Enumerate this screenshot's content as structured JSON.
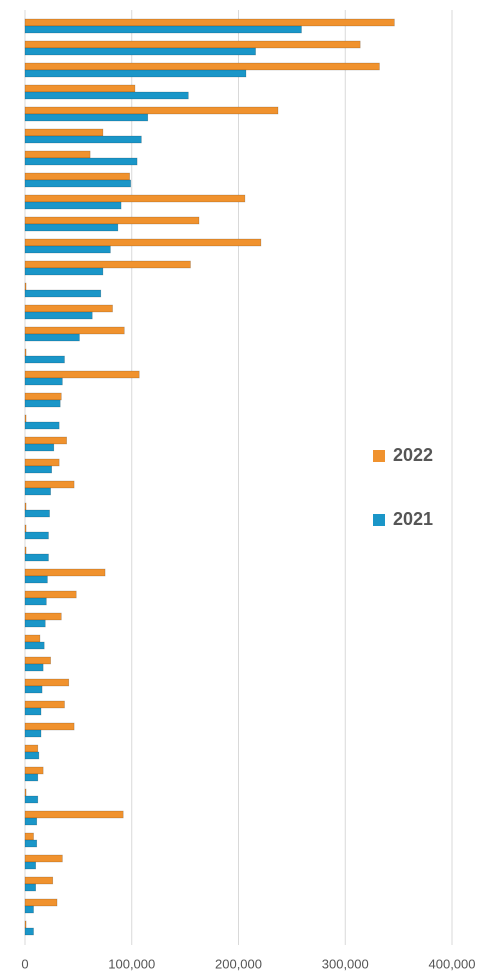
{
  "chart_data": {
    "type": "bar",
    "orientation": "horizontal",
    "categories": [
      null,
      null,
      null,
      null,
      null,
      null,
      null,
      null,
      null,
      null,
      null,
      null,
      null,
      null,
      null,
      null,
      null,
      null,
      null,
      null,
      null,
      null,
      null,
      null,
      null,
      null,
      null,
      null,
      null,
      null,
      null,
      null,
      null,
      null,
      null,
      null,
      null,
      null,
      null,
      null,
      null,
      null
    ],
    "series": [
      {
        "name": "2022",
        "color": "#f0922e",
        "values": [
          346000,
          314000,
          332000,
          103000,
          237000,
          73000,
          61000,
          98000,
          206000,
          163000,
          221000,
          155000,
          1000,
          82000,
          93000,
          1000,
          107000,
          34000,
          1000,
          39000,
          32000,
          46000,
          1000,
          1000,
          1000,
          75000,
          48000,
          34000,
          14000,
          24000,
          41000,
          37000,
          46000,
          12000,
          17000,
          1000,
          92000,
          8000,
          35000,
          26000,
          30000,
          1000
        ]
      },
      {
        "name": "2021",
        "color": "#1a96c8",
        "values": [
          259000,
          216000,
          207000,
          153000,
          115000,
          109000,
          105000,
          99000,
          90000,
          87000,
          80000,
          73000,
          71000,
          63000,
          51000,
          37000,
          35000,
          33000,
          32000,
          27000,
          25000,
          24000,
          23000,
          22000,
          22000,
          21000,
          20000,
          19000,
          18000,
          17000,
          16000,
          15000,
          15000,
          13000,
          12000,
          12000,
          11000,
          11000,
          10000,
          10000,
          8000,
          8000
        ]
      }
    ],
    "xlim": [
      0,
      400000
    ],
    "xticks": [
      0,
      {
        "value": 100000,
        "label": "100,000"
      },
      {
        "value": 200000,
        "label": "200,000"
      },
      {
        "value": 300000,
        "label": "300,000"
      },
      {
        "value": 400000,
        "label": "400,000"
      }
    ],
    "grid": true,
    "legend": "right"
  }
}
